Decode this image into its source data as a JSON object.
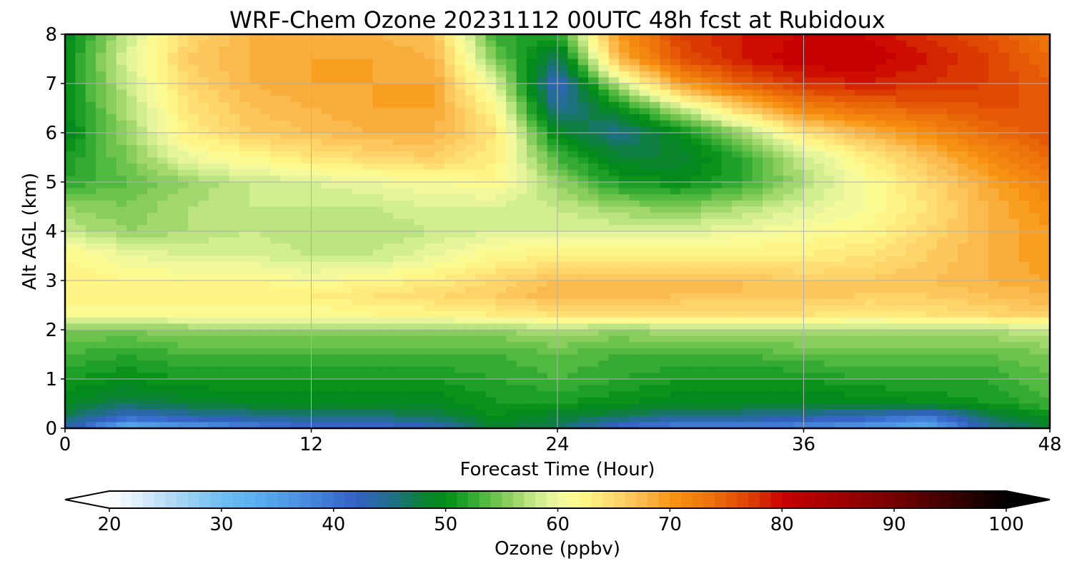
{
  "chart_data": {
    "type": "heatmap",
    "title": "WRF-Chem Ozone  20231112 00UTC 48h fcst at Rubidoux",
    "xlabel": "Forecast Time (Hour)",
    "ylabel": "Alt AGL (km)",
    "xlim": [
      0,
      48
    ],
    "ylim": [
      0,
      8
    ],
    "x_ticks": [
      "0",
      "12",
      "24",
      "36",
      "48"
    ],
    "y_ticks": [
      "0",
      "1",
      "2",
      "3",
      "4",
      "5",
      "6",
      "7",
      "8"
    ],
    "grid": true,
    "colorbar": {
      "label": "Ozone  (ppbv)",
      "min": 20,
      "max": 100,
      "extend": "both",
      "ticks": [
        "20",
        "30",
        "40",
        "50",
        "60",
        "70",
        "80",
        "90",
        "100"
      ]
    },
    "x_hours": [
      0,
      3,
      6,
      9,
      12,
      15,
      18,
      21,
      24,
      27,
      30,
      33,
      36,
      39,
      42,
      45,
      48
    ],
    "y_km": [
      0,
      0.25,
      0.5,
      1,
      1.5,
      2,
      2.3,
      2.7,
      3,
      3.5,
      4,
      4.5,
      5,
      5.5,
      6,
      6.5,
      7,
      7.5,
      8
    ],
    "ozone_ppbv": [
      [
        44,
        32,
        35,
        38,
        40,
        40,
        42,
        48,
        47,
        40,
        38,
        38,
        37,
        35,
        33,
        44,
        48
      ],
      [
        47,
        42,
        44,
        45,
        46,
        46,
        47,
        50,
        48,
        47,
        45,
        45,
        44,
        43,
        40,
        47,
        50
      ],
      [
        49,
        47,
        48,
        49,
        49,
        49,
        49,
        51,
        51,
        50,
        49,
        49,
        49,
        49,
        50,
        51,
        53
      ],
      [
        51,
        50,
        51,
        51,
        51,
        51,
        51,
        52,
        53,
        52,
        51,
        51,
        51,
        52,
        52,
        52,
        54
      ],
      [
        53,
        52,
        53,
        53,
        53,
        53,
        53,
        53,
        54,
        53,
        53,
        53,
        54,
        54,
        54,
        54,
        55
      ],
      [
        55,
        55,
        56,
        56,
        56,
        56,
        56,
        56,
        57,
        56,
        57,
        57,
        57,
        57,
        57,
        57,
        58
      ],
      [
        61,
        61,
        61,
        61,
        61,
        62,
        62,
        63,
        64,
        64,
        64,
        64,
        64,
        63,
        64,
        65,
        66
      ],
      [
        63,
        63,
        63,
        63,
        63,
        64,
        65,
        66,
        68,
        68,
        67,
        67,
        67,
        66,
        66,
        67,
        68
      ],
      [
        63,
        62,
        62,
        62,
        61,
        62,
        63,
        65,
        67,
        67,
        67,
        67,
        66,
        66,
        67,
        68,
        69
      ],
      [
        62,
        60,
        59,
        59,
        58,
        58,
        60,
        62,
        63,
        63,
        63,
        63,
        63,
        64,
        66,
        68,
        70
      ],
      [
        58,
        56,
        57,
        58,
        57,
        57,
        58,
        59,
        59,
        59,
        59,
        60,
        61,
        62,
        65,
        68,
        70
      ],
      [
        56,
        55,
        57,
        58,
        58,
        58,
        59,
        59,
        58,
        56,
        55,
        57,
        59,
        61,
        64,
        68,
        71
      ],
      [
        52,
        54,
        56,
        58,
        59,
        60,
        61,
        62,
        56,
        51,
        50,
        52,
        57,
        61,
        65,
        69,
        72
      ],
      [
        51,
        55,
        60,
        62,
        64,
        65,
        66,
        63,
        53,
        48,
        48,
        52,
        58,
        63,
        67,
        71,
        74
      ],
      [
        49,
        56,
        63,
        66,
        67,
        68,
        68,
        64,
        49,
        45,
        50,
        56,
        64,
        68,
        71,
        74,
        76
      ],
      [
        50,
        57,
        64,
        67,
        68,
        69,
        69,
        62,
        44,
        50,
        58,
        66,
        72,
        74,
        75,
        76,
        76
      ],
      [
        50,
        58,
        65,
        68,
        69,
        69,
        69,
        59,
        42,
        58,
        70,
        75,
        78,
        79,
        78,
        77,
        75
      ],
      [
        50,
        59,
        66,
        68,
        69,
        69,
        68,
        55,
        46,
        68,
        76,
        79,
        81,
        81,
        79,
        77,
        74
      ],
      [
        49,
        58,
        65,
        68,
        68,
        68,
        67,
        52,
        52,
        70,
        77,
        79,
        80,
        80,
        78,
        76,
        73
      ]
    ]
  }
}
